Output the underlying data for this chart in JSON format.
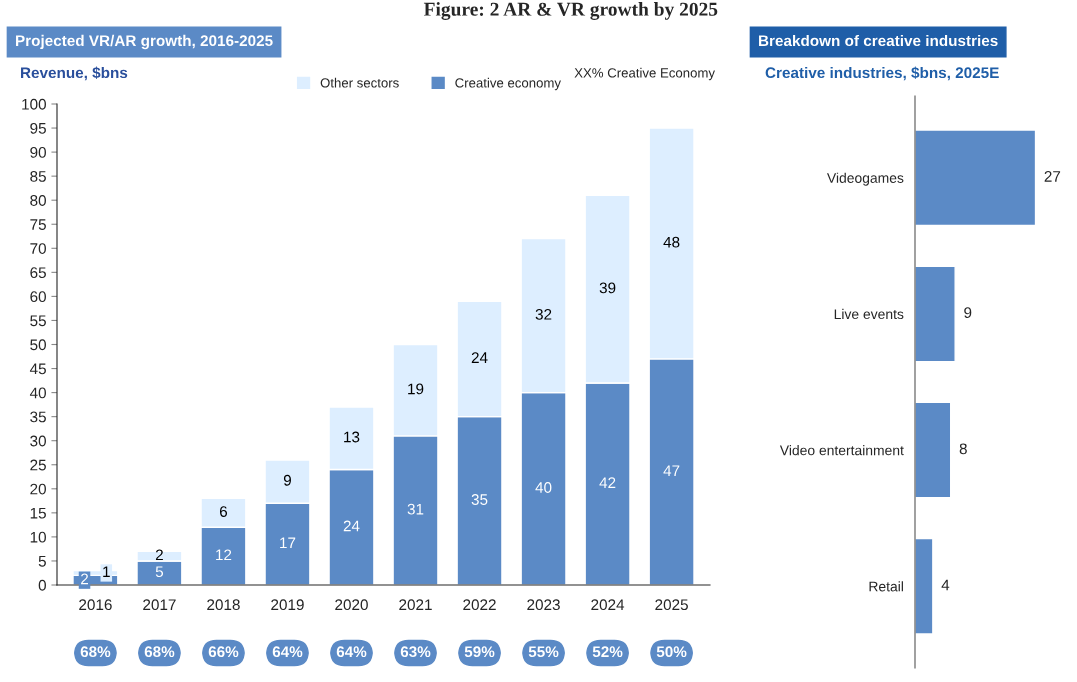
{
  "chart_data": [
    {
      "type": "bar",
      "title": "Projected VR/AR growth, 2016-2025",
      "subtitle": "Figure: 2 AR & VR growth by 2025",
      "ylabel": "Revenue, $bns",
      "categories": [
        "2016",
        "2017",
        "2018",
        "2019",
        "2020",
        "2021",
        "2022",
        "2023",
        "2024",
        "2025"
      ],
      "stacked": true,
      "series": [
        {
          "name": "Creative economy",
          "color": "#5b8ac6",
          "values": [
            2,
            5,
            12,
            17,
            24,
            31,
            35,
            40,
            42,
            47
          ]
        },
        {
          "name": "Other sectors",
          "color": "#ddeeff",
          "values": [
            1,
            2,
            6,
            9,
            13,
            19,
            24,
            32,
            39,
            48
          ]
        }
      ],
      "ylim": [
        0,
        100
      ],
      "yticks": [
        0,
        5,
        10,
        15,
        20,
        25,
        30,
        35,
        40,
        45,
        50,
        55,
        60,
        65,
        70,
        75,
        80,
        85,
        90,
        95,
        100
      ],
      "data_labels": true,
      "grid": false,
      "legend": "top right",
      "annotations": [
        "XX% Creative Economy",
        "68%",
        "68%",
        "66%",
        "64%",
        "64%",
        "63%",
        "59%",
        "55%",
        "52%",
        "50%"
      ]
    },
    {
      "type": "bar",
      "orientation": "horizontal",
      "title": "Breakdown of creative industries",
      "subtitle": "Creative industries, $bns, 2025E",
      "categories": [
        "Videogames",
        "Live events",
        "Video entertainment",
        "Retail"
      ],
      "values": [
        27,
        9,
        8,
        4
      ],
      "color": "#5b8ac6",
      "data_labels": true,
      "tick_labels": "y",
      "grid": false
    }
  ]
}
